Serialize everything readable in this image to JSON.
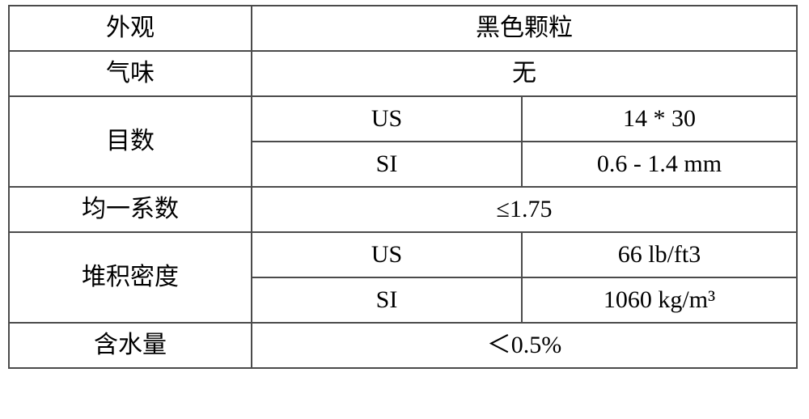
{
  "table": {
    "border_color": "#4b4b4b",
    "background_color": "#ffffff",
    "font_zh": "SimSun",
    "font_en": "Times New Roman",
    "fontsize": 30,
    "columns": {
      "c1_width": 300,
      "c2_width": 334,
      "c3_width": 340
    },
    "rows": [
      {
        "label": "外观",
        "value": "黑色颗粒"
      },
      {
        "label": "气味",
        "value": "无"
      },
      {
        "label": "目数",
        "subrows": [
          {
            "key": "US",
            "val": "14 * 30"
          },
          {
            "key": "SI",
            "val": "0.6 - 1.4 mm"
          }
        ]
      },
      {
        "label": "均一系数",
        "value": "≤1.75"
      },
      {
        "label": "堆积密度",
        "subrows": [
          {
            "key": "US",
            "val": "66 lb/ft3"
          },
          {
            "key": "SI",
            "val": "1060 kg/m³"
          }
        ]
      },
      {
        "label": "含水量",
        "value": "＜0.5%"
      }
    ]
  }
}
